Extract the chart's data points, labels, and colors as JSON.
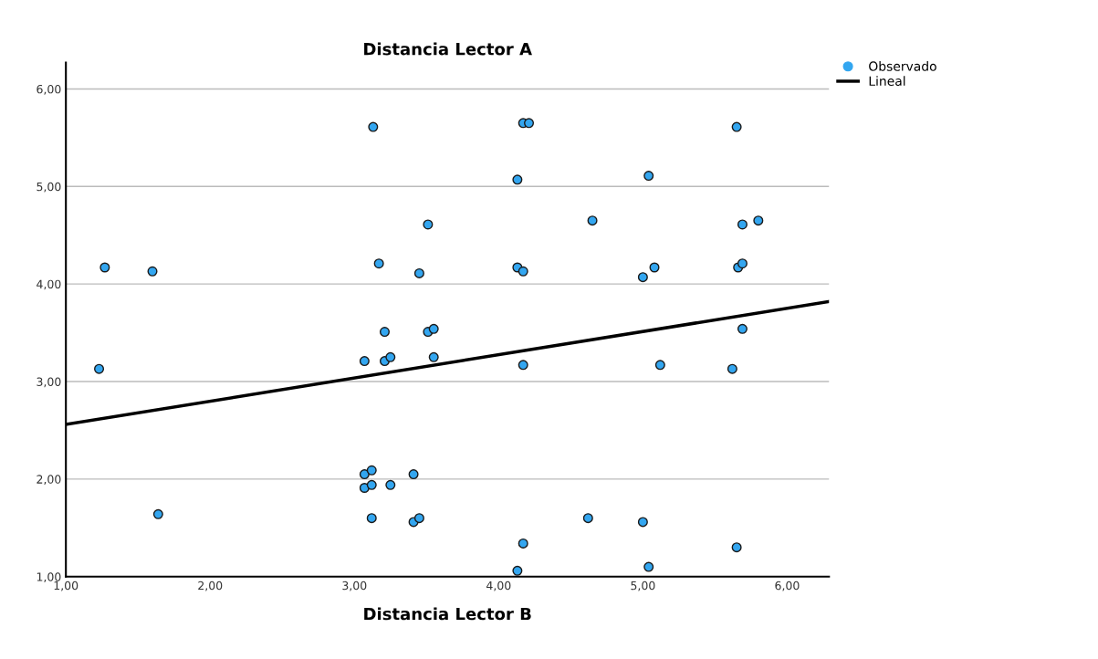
{
  "chart_data": {
    "type": "scatter",
    "title": "Distancia Lector A",
    "xlabel": "Distancia Lector B",
    "xlim": [
      1,
      6.29
    ],
    "ylim": [
      1,
      6.27
    ],
    "xticks": [
      {
        "value": 1,
        "label": "1,00"
      },
      {
        "value": 2,
        "label": "2,00"
      },
      {
        "value": 3,
        "label": "3,00"
      },
      {
        "value": 4,
        "label": "4,00"
      },
      {
        "value": 5,
        "label": "5,00"
      },
      {
        "value": 6,
        "label": "6,00"
      }
    ],
    "yticks": [
      {
        "value": 1,
        "label": "1,00"
      },
      {
        "value": 2,
        "label": "2,00"
      },
      {
        "value": 3,
        "label": "3,00"
      },
      {
        "value": 4,
        "label": "4,00"
      },
      {
        "value": 5,
        "label": "5,00"
      },
      {
        "value": 6,
        "label": "6,00"
      }
    ],
    "grid": "y",
    "legend": "top right",
    "series": [
      {
        "name": "Observado",
        "marker": "circle",
        "color": "#33a6f0",
        "x": [
          1.27,
          1.6,
          3.13,
          3.17,
          3.51,
          3.45,
          4.17,
          4.21,
          5.65,
          4.13,
          5.04,
          4.65,
          5.69,
          5.8,
          4.13,
          4.17,
          5.0,
          5.08,
          5.66,
          5.69,
          1.23,
          1.64,
          3.07,
          3.21,
          3.21,
          3.25,
          3.51,
          3.55,
          3.55,
          3.07,
          3.12,
          3.07,
          3.12,
          3.25,
          3.41,
          3.12,
          3.41,
          3.45,
          4.17,
          5.12,
          5.62,
          5.69,
          4.62,
          5.0,
          4.17,
          4.13,
          5.04,
          5.65
        ],
        "values": [
          4.17,
          4.13,
          5.61,
          4.21,
          4.61,
          4.11,
          5.65,
          5.65,
          5.61,
          5.07,
          5.11,
          4.65,
          4.61,
          4.65,
          4.17,
          4.13,
          4.07,
          4.17,
          4.17,
          4.21,
          3.13,
          1.64,
          3.21,
          3.51,
          3.21,
          3.25,
          3.51,
          3.54,
          3.25,
          2.05,
          2.09,
          1.91,
          1.94,
          1.94,
          2.05,
          1.6,
          1.56,
          1.6,
          3.17,
          3.17,
          3.13,
          3.54,
          1.6,
          1.56,
          1.34,
          1.06,
          1.1,
          1.3
        ]
      },
      {
        "name": "Lineal",
        "type": "line",
        "color": "#000000",
        "x": [
          1,
          6.29
        ],
        "values": [
          2.56,
          3.82
        ]
      }
    ]
  }
}
